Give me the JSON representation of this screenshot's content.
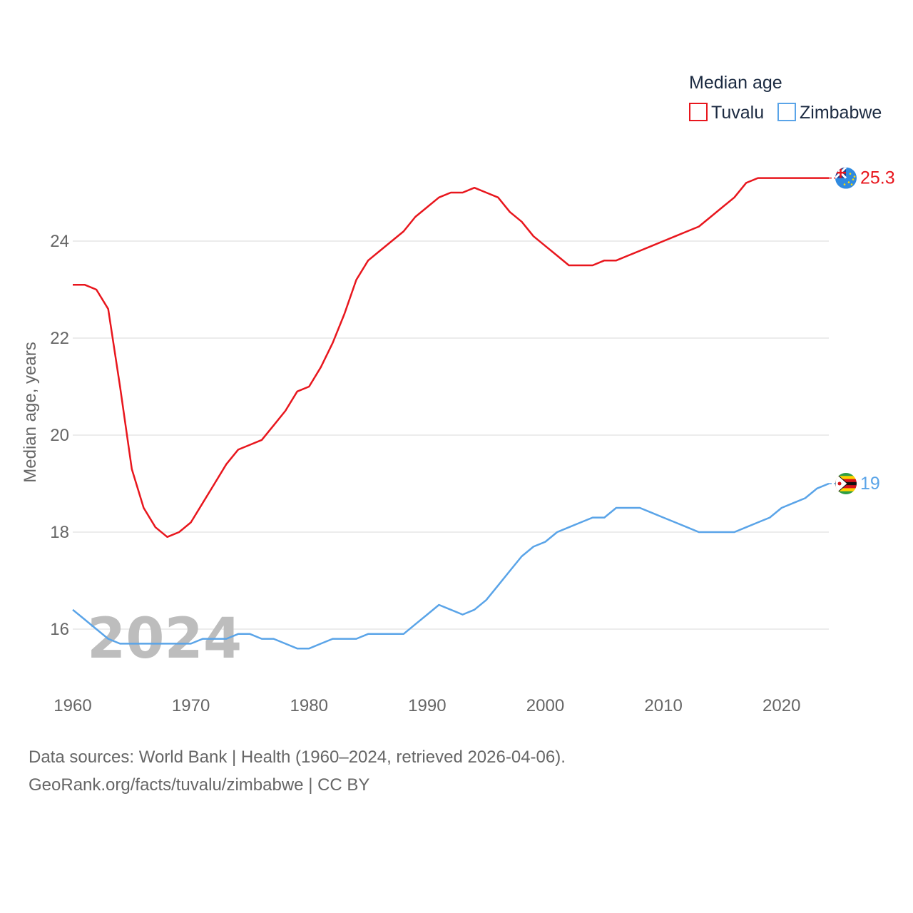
{
  "chart_data": {
    "type": "line",
    "title": "",
    "legend_title": "Median age",
    "ylabel": "Median age, years",
    "xlabel": "",
    "xlim": [
      1960,
      2024
    ],
    "ylim": [
      15,
      25.5
    ],
    "y_ticks": [
      16,
      18,
      20,
      22,
      24
    ],
    "x_ticks": [
      1960,
      1970,
      1980,
      1990,
      2000,
      2010,
      2020
    ],
    "grid": true,
    "legend_position": "top-right",
    "current_year": "2024",
    "x": [
      1960,
      1961,
      1962,
      1963,
      1964,
      1965,
      1966,
      1967,
      1968,
      1969,
      1970,
      1971,
      1972,
      1973,
      1974,
      1975,
      1976,
      1977,
      1978,
      1979,
      1980,
      1981,
      1982,
      1983,
      1984,
      1985,
      1986,
      1987,
      1988,
      1989,
      1990,
      1991,
      1992,
      1993,
      1994,
      1995,
      1996,
      1997,
      1998,
      1999,
      2000,
      2001,
      2002,
      2003,
      2004,
      2005,
      2006,
      2007,
      2008,
      2009,
      2010,
      2011,
      2012,
      2013,
      2014,
      2015,
      2016,
      2017,
      2018,
      2019,
      2020,
      2021,
      2022,
      2023,
      2024
    ],
    "series": [
      {
        "name": "Tuvalu",
        "color": "#e8161d",
        "end_label": "25.3",
        "flag_icon": "tuvalu-flag-icon",
        "values": [
          23.1,
          23.1,
          23.0,
          22.6,
          21.0,
          19.3,
          18.5,
          18.1,
          17.9,
          18.0,
          18.2,
          18.6,
          19.0,
          19.4,
          19.7,
          19.8,
          19.9,
          20.2,
          20.5,
          20.9,
          21.0,
          21.4,
          21.9,
          22.5,
          23.2,
          23.6,
          23.8,
          24.0,
          24.2,
          24.5,
          24.7,
          24.9,
          25.0,
          25.0,
          25.1,
          25.0,
          24.9,
          24.6,
          24.4,
          24.1,
          23.9,
          23.7,
          23.5,
          23.5,
          23.5,
          23.6,
          23.6,
          23.7,
          23.8,
          23.9,
          24.0,
          24.1,
          24.2,
          24.3,
          24.5,
          24.7,
          24.9,
          25.2,
          25.3,
          25.3,
          25.3,
          25.3,
          25.3,
          25.3,
          25.3
        ]
      },
      {
        "name": "Zimbabwe",
        "color": "#5aa4e8",
        "end_label": "19",
        "flag_icon": "zimbabwe-flag-icon",
        "values": [
          16.4,
          16.2,
          16.0,
          15.8,
          15.7,
          15.7,
          15.7,
          15.7,
          15.7,
          15.7,
          15.7,
          15.8,
          15.8,
          15.8,
          15.9,
          15.9,
          15.8,
          15.8,
          15.7,
          15.6,
          15.6,
          15.7,
          15.8,
          15.8,
          15.8,
          15.9,
          15.9,
          15.9,
          15.9,
          16.1,
          16.3,
          16.5,
          16.4,
          16.3,
          16.4,
          16.6,
          16.9,
          17.2,
          17.5,
          17.7,
          17.8,
          18.0,
          18.1,
          18.2,
          18.3,
          18.3,
          18.5,
          18.5,
          18.5,
          18.4,
          18.3,
          18.2,
          18.1,
          18.0,
          18.0,
          18.0,
          18.0,
          18.1,
          18.2,
          18.3,
          18.5,
          18.6,
          18.7,
          18.9,
          19.0
        ]
      }
    ]
  },
  "footer": {
    "source_line": "Data sources: World Bank | Health (1960–2024, retrieved 2026-04-06).",
    "credit_line": "GeoRank.org/facts/tuvalu/zimbabwe | CC BY"
  }
}
